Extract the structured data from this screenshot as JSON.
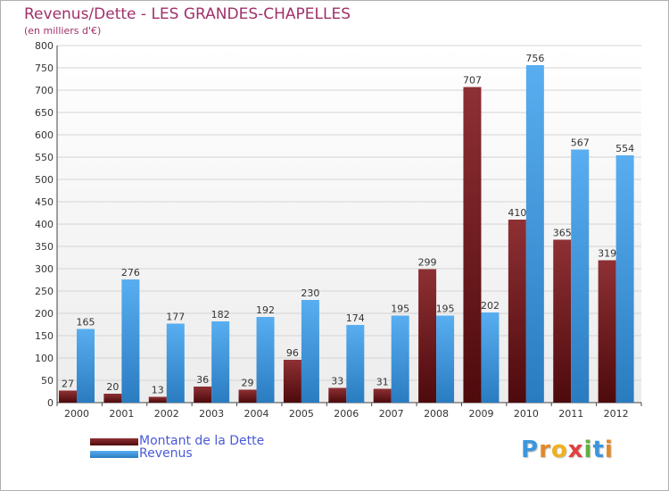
{
  "header": {
    "title": "Revenus/Dette - LES GRANDES-CHAPELLES",
    "subtitle": "(en milliers d'€)"
  },
  "colors": {
    "dette": "#7a1f22",
    "revenus": "#3d96dc",
    "title": "#a0306a",
    "legend_text": "#4a5ad8"
  },
  "chart_data": {
    "type": "bar",
    "title": "Revenus/Dette - LES GRANDES-CHAPELLES",
    "ylabel": "(en milliers d'€)",
    "xlabel": "",
    "ylim": [
      0,
      800
    ],
    "ytick_step": 50,
    "yticks": [
      "0",
      "50",
      "100",
      "150",
      "200",
      "250",
      "300",
      "350",
      "400",
      "450",
      "500",
      "550",
      "600",
      "650",
      "700",
      "750",
      "800"
    ],
    "grid": true,
    "legend_position": "bottom-left",
    "categories": [
      "2000",
      "2001",
      "2002",
      "2003",
      "2004",
      "2005",
      "2006",
      "2007",
      "2008",
      "2009",
      "2010",
      "2011",
      "2012"
    ],
    "series": [
      {
        "name": "Montant de la Dette",
        "values": [
          27,
          20,
          13,
          36,
          29,
          96,
          33,
          31,
          299,
          707,
          410,
          365,
          319
        ]
      },
      {
        "name": "Revenus",
        "values": [
          165,
          276,
          177,
          182,
          192,
          230,
          174,
          195,
          195,
          202,
          756,
          567,
          554
        ]
      }
    ]
  },
  "legend": {
    "items": [
      "Montant de la Dette",
      "Revenus"
    ]
  },
  "logo": {
    "letters": [
      "P",
      "r",
      "o",
      "x",
      "i",
      "t",
      "i"
    ],
    "colors": [
      "#3d96dc",
      "#e0892a",
      "#f0b020",
      "#e04040",
      "#60b040",
      "#3d96dc",
      "#e0892a"
    ]
  }
}
